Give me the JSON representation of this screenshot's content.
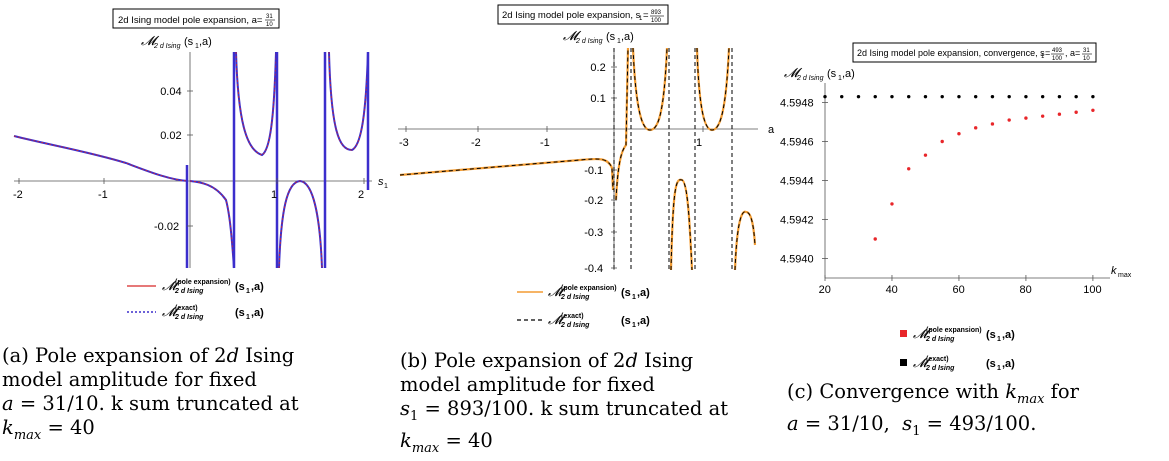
{
  "panels": [
    {
      "title": "2d Ising model pole expansion, a=",
      "title_frac": {
        "num": "31",
        "den": "10"
      },
      "ylabel": "𝓜",
      "ylabel_sub": "2 d Ising",
      "ylabel_args": "(s",
      "ylabel_args_sub": "1",
      "ylabel_args_end": ",a)",
      "xlabel": "s",
      "xlabel_sub": "1",
      "caption_lines": [
        "(a) Pole expansion of 2d Ising",
        "model amplitude for fixed",
        "a = 31/10. k sum truncated at",
        "k_max = 40"
      ],
      "legend": [
        {
          "label": "(pole expansion)",
          "color": "#d62728",
          "style": "solid"
        },
        {
          "label": "(exact)",
          "color": "#3b2ecc",
          "style": "dotted"
        }
      ]
    },
    {
      "title": "2d Ising model pole expansion, s",
      "title_sub": "1",
      "title_eq": "=",
      "title_frac": {
        "num": "893",
        "den": "100"
      },
      "ylabel": "𝓜",
      "ylabel_sub": "2 d Ising",
      "ylabel_args": "(s",
      "ylabel_args_sub": "1",
      "ylabel_args_end": ",a)",
      "xlabel": "a",
      "caption_lines": [
        "(b) Pole expansion of 2d Ising",
        "model amplitude for fixed",
        "s1 = 893/100. k sum truncated at",
        "k_max = 40"
      ],
      "legend": [
        {
          "label": "(pole expansion)",
          "color": "#f39c32",
          "style": "solid"
        },
        {
          "label": "(exact)",
          "color": "#000000",
          "style": "dashed"
        }
      ]
    },
    {
      "title": "2d Ising model pole expansion, convergence, s",
      "title_sub": "1",
      "title_eq": "=",
      "title_frac": {
        "num": "493",
        "den": "100"
      },
      "title_sep": ", a=",
      "title_frac2": {
        "num": "31",
        "den": "10"
      },
      "ylabel": "𝓜",
      "ylabel_sub": "2 d Ising",
      "ylabel_args": "(s",
      "ylabel_args_sub": "1",
      "ylabel_args_end": ",a)",
      "xlabel": "k",
      "xlabel_sub": "max",
      "caption_lines": [
        "(c) Convergence with k_max for",
        "a = 31/10,  s1 = 493/100."
      ],
      "legend": [
        {
          "label": "(pole expansion)",
          "color": "#e8262a",
          "style": "square"
        },
        {
          "label": "(exact)",
          "color": "#000000",
          "style": "square"
        }
      ]
    }
  ],
  "legend_common": {
    "symbol": "𝓜",
    "sub": "2 d Ising",
    "args": "(s",
    "args_sub": "1",
    "args_end": ",a)"
  },
  "chart_data": [
    {
      "type": "line",
      "xlim": [
        -2.05,
        2.05
      ],
      "ylim": [
        -0.035,
        0.055
      ],
      "x_ticks": [
        "-2",
        "-1",
        "1",
        "2"
      ],
      "y_ticks": [
        "-0.02",
        "0.02",
        "0.04"
      ],
      "poles": [
        0,
        0.6,
        1.2,
        1.4,
        1.9
      ]
    },
    {
      "type": "line",
      "xlim": [
        -3.05,
        1.7
      ],
      "ylim": [
        -0.4,
        0.25
      ],
      "x_ticks": [
        "-3",
        "-2",
        "-1",
        "1"
      ],
      "y_ticks": [
        "0.2",
        "0.1",
        "-0.1",
        "-0.2",
        "-0.3",
        "-0.4"
      ],
      "poles": [
        0,
        0.15,
        0.8,
        0.92
      ]
    },
    {
      "type": "scatter",
      "xlim": [
        20,
        100
      ],
      "ylim": [
        4.5939,
        4.5949
      ],
      "x_ticks": [
        "20",
        "40",
        "60",
        "80",
        "100"
      ],
      "y_ticks": [
        "4.5940",
        "4.5942",
        "4.5944",
        "4.5946",
        "4.5948"
      ],
      "series": [
        {
          "name": "pole expansion",
          "x": [
            35,
            40,
            45,
            50,
            55,
            60,
            65,
            70,
            75,
            80,
            85,
            90,
            95,
            100
          ],
          "y": [
            4.5941,
            4.59428,
            4.59446,
            4.59453,
            4.5946,
            4.59464,
            4.59467,
            4.59469,
            4.59471,
            4.59472,
            4.59473,
            4.59474,
            4.59475,
            4.59476
          ]
        },
        {
          "name": "exact",
          "x": [
            20,
            25,
            30,
            35,
            40,
            45,
            50,
            55,
            60,
            65,
            70,
            75,
            80,
            85,
            90,
            95,
            100
          ],
          "y": [
            4.59483,
            4.59483,
            4.59483,
            4.59483,
            4.59483,
            4.59483,
            4.59483,
            4.59483,
            4.59483,
            4.59483,
            4.59483,
            4.59483,
            4.59483,
            4.59483,
            4.59483,
            4.59483,
            4.59483
          ]
        }
      ]
    }
  ]
}
